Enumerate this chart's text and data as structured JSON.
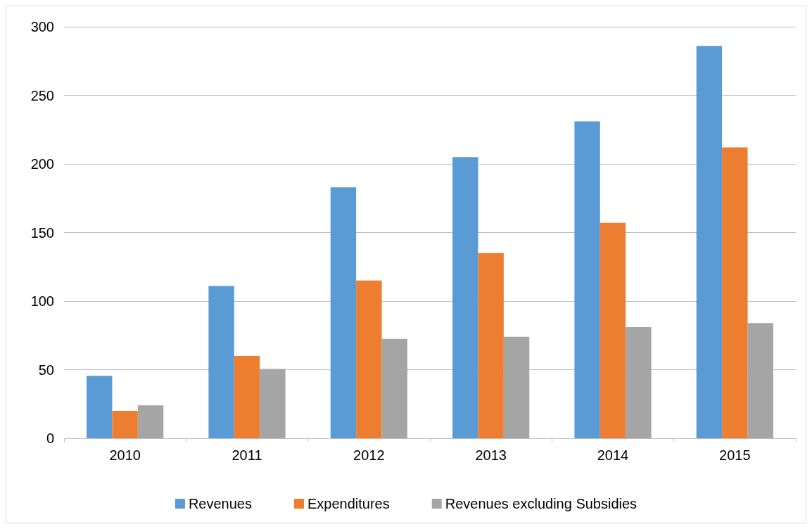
{
  "chart_data": {
    "type": "bar",
    "categories": [
      "2010",
      "2011",
      "2012",
      "2013",
      "2014",
      "2015"
    ],
    "series": [
      {
        "name": "Revenues",
        "color": "#5b9bd5",
        "values": [
          45.5,
          111,
          183,
          205,
          231,
          286
        ]
      },
      {
        "name": "Expenditures",
        "color": "#ed7d31",
        "values": [
          20,
          60,
          115,
          135,
          157,
          212
        ]
      },
      {
        "name": "Revenues excluding Subsidies",
        "color": "#a5a5a5",
        "values": [
          24,
          50.5,
          72.5,
          74,
          81,
          84
        ]
      }
    ],
    "ylim": [
      0,
      300
    ],
    "yticks": [
      0,
      50,
      100,
      150,
      200,
      250,
      300
    ],
    "grid": "y",
    "legend": "bottom"
  }
}
